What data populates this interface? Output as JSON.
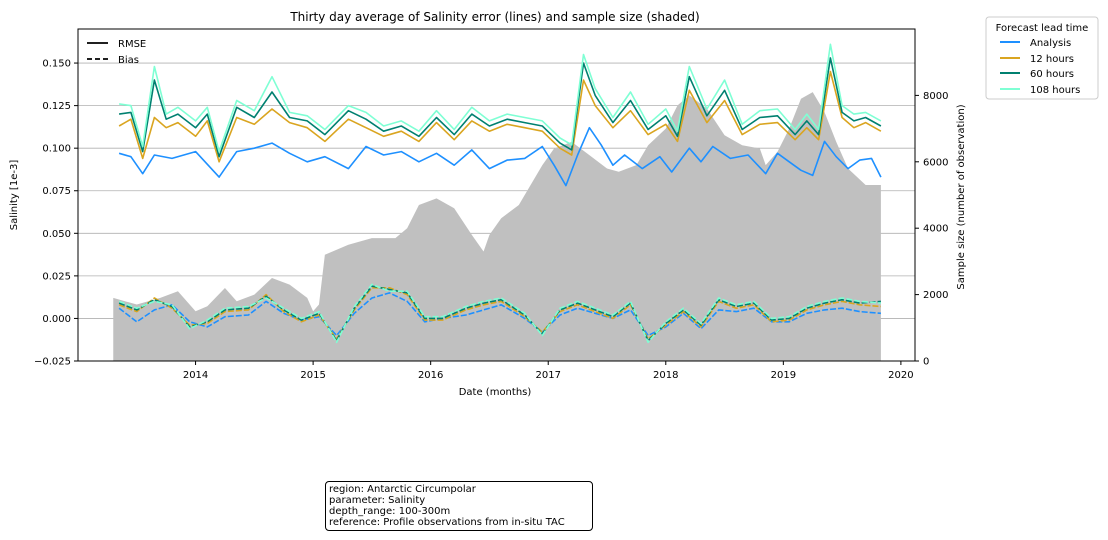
{
  "chart_data": {
    "type": "line",
    "title": "Thirty day average of Salinity error (lines) and sample size (shaded)",
    "xlabel": "Date (months)",
    "ylabel": "Salinity [1e-3]",
    "y2label": "Sample size (number of observation)",
    "xlim": [
      2013.0,
      2020.12
    ],
    "ylim": [
      -0.025,
      0.17
    ],
    "y2lim": [
      0,
      10000
    ],
    "x_ticks": [
      "2014",
      "2015",
      "2016",
      "2017",
      "2018",
      "2019",
      "2020"
    ],
    "y_ticks": [
      "−0.025",
      "0.000",
      "0.025",
      "0.050",
      "0.075",
      "0.100",
      "0.125",
      "0.150"
    ],
    "y2_ticks": [
      "0",
      "2000",
      "4000",
      "6000",
      "8000"
    ],
    "grid": "horizontal",
    "style_legend": {
      "placement": "top-left",
      "entries": [
        {
          "label": "RMSE",
          "style": "solid"
        },
        {
          "label": "Bias",
          "style": "dashed"
        }
      ]
    },
    "series_legend": {
      "title": "Forecast lead time",
      "placement": "outside-top-right",
      "entries": [
        "Analysis",
        "12 hours",
        "60 hours",
        "108 hours"
      ]
    },
    "sample_size": {
      "color": "#c0c0c0",
      "x": [
        2013.3,
        2013.5,
        2013.7,
        2013.85,
        2014.0,
        2014.1,
        2014.25,
        2014.35,
        2014.5,
        2014.65,
        2014.8,
        2014.95,
        2015.0,
        2015.05,
        2015.1,
        2015.3,
        2015.5,
        2015.7,
        2015.8,
        2015.9,
        2016.05,
        2016.2,
        2016.35,
        2016.45,
        2016.5,
        2016.6,
        2016.75,
        2016.8,
        2016.95,
        2017.05,
        2017.2,
        2017.35,
        2017.5,
        2017.6,
        2017.75,
        2017.85,
        2018.0,
        2018.1,
        2018.2,
        2018.35,
        2018.5,
        2018.65,
        2018.8,
        2018.85,
        2018.95,
        2019.05,
        2019.15,
        2019.25,
        2019.35,
        2019.45,
        2019.55,
        2019.7,
        2019.83
      ],
      "values": [
        1900,
        1700,
        1900,
        2100,
        1500,
        1650,
        2200,
        1800,
        2000,
        2500,
        2300,
        1900,
        1500,
        1700,
        3200,
        3500,
        3700,
        3700,
        4000,
        4700,
        4900,
        4600,
        3800,
        3300,
        3800,
        4300,
        4700,
        5000,
        5900,
        6400,
        6600,
        6200,
        5800,
        5700,
        5900,
        6500,
        7000,
        7700,
        8000,
        7600,
        6800,
        6500,
        6400,
        5900,
        6300,
        7000,
        7900,
        8100,
        7500,
        6600,
        5800,
        5300,
        5300
      ]
    },
    "series": [
      {
        "name": "Analysis",
        "color": "#1e90ff",
        "kind": "RMSE",
        "x": [
          2013.35,
          2013.45,
          2013.55,
          2013.65,
          2013.8,
          2014.0,
          2014.2,
          2014.35,
          2014.5,
          2014.65,
          2014.8,
          2014.95,
          2015.1,
          2015.3,
          2015.45,
          2015.6,
          2015.75,
          2015.9,
          2016.05,
          2016.2,
          2016.35,
          2016.5,
          2016.65,
          2016.8,
          2016.95,
          2017.05,
          2017.15,
          2017.25,
          2017.35,
          2017.45,
          2017.55,
          2017.65,
          2017.8,
          2017.95,
          2018.05,
          2018.2,
          2018.3,
          2018.4,
          2018.55,
          2018.7,
          2018.85,
          2018.95,
          2019.05,
          2019.15,
          2019.25,
          2019.35,
          2019.45,
          2019.55,
          2019.65,
          2019.75,
          2019.83
        ],
        "values": [
          0.097,
          0.095,
          0.085,
          0.096,
          0.094,
          0.098,
          0.083,
          0.098,
          0.1,
          0.103,
          0.097,
          0.092,
          0.095,
          0.088,
          0.101,
          0.096,
          0.098,
          0.092,
          0.097,
          0.09,
          0.099,
          0.088,
          0.093,
          0.094,
          0.101,
          0.09,
          0.078,
          0.096,
          0.112,
          0.102,
          0.09,
          0.096,
          0.088,
          0.095,
          0.086,
          0.1,
          0.092,
          0.101,
          0.094,
          0.096,
          0.085,
          0.097,
          0.092,
          0.087,
          0.084,
          0.104,
          0.095,
          0.088,
          0.093,
          0.094,
          0.083
        ]
      },
      {
        "name": "12 hours",
        "color": "#daa520",
        "kind": "RMSE",
        "x": [
          2013.35,
          2013.45,
          2013.55,
          2013.65,
          2013.75,
          2013.85,
          2014.0,
          2014.1,
          2014.2,
          2014.35,
          2014.5,
          2014.65,
          2014.8,
          2014.95,
          2015.1,
          2015.3,
          2015.45,
          2015.6,
          2015.75,
          2015.9,
          2016.05,
          2016.2,
          2016.35,
          2016.5,
          2016.65,
          2016.8,
          2016.95,
          2017.1,
          2017.2,
          2017.3,
          2017.4,
          2017.55,
          2017.7,
          2017.85,
          2018.0,
          2018.1,
          2018.2,
          2018.35,
          2018.5,
          2018.65,
          2018.8,
          2018.95,
          2019.1,
          2019.2,
          2019.3,
          2019.4,
          2019.5,
          2019.6,
          2019.7,
          2019.83
        ],
        "values": [
          0.113,
          0.117,
          0.094,
          0.118,
          0.112,
          0.115,
          0.107,
          0.116,
          0.092,
          0.118,
          0.114,
          0.123,
          0.115,
          0.112,
          0.104,
          0.117,
          0.112,
          0.107,
          0.11,
          0.104,
          0.115,
          0.105,
          0.116,
          0.11,
          0.114,
          0.112,
          0.11,
          0.1,
          0.096,
          0.14,
          0.125,
          0.112,
          0.122,
          0.108,
          0.114,
          0.104,
          0.134,
          0.115,
          0.128,
          0.108,
          0.114,
          0.115,
          0.105,
          0.112,
          0.105,
          0.145,
          0.118,
          0.112,
          0.115,
          0.11
        ]
      },
      {
        "name": "60 hours",
        "color": "#008070",
        "kind": "RMSE",
        "x": [
          2013.35,
          2013.45,
          2013.55,
          2013.65,
          2013.75,
          2013.85,
          2014.0,
          2014.1,
          2014.2,
          2014.35,
          2014.5,
          2014.65,
          2014.8,
          2014.95,
          2015.1,
          2015.3,
          2015.45,
          2015.6,
          2015.75,
          2015.9,
          2016.05,
          2016.2,
          2016.35,
          2016.5,
          2016.65,
          2016.8,
          2016.95,
          2017.1,
          2017.2,
          2017.3,
          2017.4,
          2017.55,
          2017.7,
          2017.85,
          2018.0,
          2018.1,
          2018.2,
          2018.35,
          2018.5,
          2018.65,
          2018.8,
          2018.95,
          2019.1,
          2019.2,
          2019.3,
          2019.4,
          2019.5,
          2019.6,
          2019.7,
          2019.83
        ],
        "values": [
          0.12,
          0.121,
          0.098,
          0.14,
          0.117,
          0.12,
          0.112,
          0.12,
          0.095,
          0.124,
          0.118,
          0.133,
          0.118,
          0.116,
          0.108,
          0.122,
          0.117,
          0.11,
          0.113,
          0.107,
          0.118,
          0.108,
          0.12,
          0.113,
          0.117,
          0.115,
          0.113,
          0.103,
          0.099,
          0.15,
          0.131,
          0.115,
          0.128,
          0.111,
          0.119,
          0.107,
          0.142,
          0.119,
          0.134,
          0.111,
          0.118,
          0.119,
          0.108,
          0.116,
          0.108,
          0.153,
          0.121,
          0.116,
          0.118,
          0.113
        ]
      },
      {
        "name": "108 hours",
        "color": "#7fffd4",
        "kind": "RMSE",
        "x": [
          2013.35,
          2013.45,
          2013.55,
          2013.65,
          2013.75,
          2013.85,
          2014.0,
          2014.1,
          2014.2,
          2014.35,
          2014.5,
          2014.65,
          2014.8,
          2014.95,
          2015.1,
          2015.3,
          2015.45,
          2015.6,
          2015.75,
          2015.9,
          2016.05,
          2016.2,
          2016.35,
          2016.5,
          2016.65,
          2016.8,
          2016.95,
          2017.1,
          2017.2,
          2017.3,
          2017.4,
          2017.55,
          2017.7,
          2017.85,
          2018.0,
          2018.1,
          2018.2,
          2018.35,
          2018.5,
          2018.65,
          2018.8,
          2018.95,
          2019.1,
          2019.2,
          2019.3,
          2019.4,
          2019.5,
          2019.6,
          2019.7,
          2019.83
        ],
        "values": [
          0.126,
          0.125,
          0.101,
          0.148,
          0.12,
          0.124,
          0.116,
          0.124,
          0.098,
          0.128,
          0.122,
          0.142,
          0.121,
          0.119,
          0.111,
          0.125,
          0.121,
          0.113,
          0.116,
          0.11,
          0.122,
          0.111,
          0.124,
          0.116,
          0.12,
          0.118,
          0.116,
          0.106,
          0.102,
          0.155,
          0.135,
          0.118,
          0.133,
          0.114,
          0.123,
          0.11,
          0.148,
          0.123,
          0.14,
          0.114,
          0.122,
          0.123,
          0.111,
          0.12,
          0.111,
          0.161,
          0.125,
          0.12,
          0.121,
          0.116
        ]
      },
      {
        "name": "Analysis",
        "color": "#1e90ff",
        "kind": "Bias",
        "x": [
          2013.35,
          2013.5,
          2013.65,
          2013.8,
          2013.95,
          2014.1,
          2014.25,
          2014.45,
          2014.6,
          2014.75,
          2014.9,
          2015.05,
          2015.2,
          2015.35,
          2015.5,
          2015.65,
          2015.8,
          2015.95,
          2016.1,
          2016.3,
          2016.45,
          2016.6,
          2016.8,
          2016.95,
          2017.1,
          2017.25,
          2017.4,
          2017.55,
          2017.7,
          2017.85,
          2018.0,
          2018.15,
          2018.3,
          2018.45,
          2018.6,
          2018.75,
          2018.9,
          2019.05,
          2019.2,
          2019.35,
          2019.5,
          2019.65,
          2019.83
        ],
        "values": [
          0.006,
          -0.002,
          0.005,
          0.008,
          -0.002,
          -0.005,
          0.001,
          0.002,
          0.01,
          0.003,
          -0.001,
          0.001,
          -0.01,
          0.003,
          0.012,
          0.015,
          0.01,
          -0.002,
          0.0,
          0.002,
          0.005,
          0.008,
          0.0,
          -0.008,
          0.002,
          0.006,
          0.003,
          0.0,
          0.005,
          -0.01,
          -0.005,
          0.003,
          -0.006,
          0.005,
          0.004,
          0.006,
          -0.002,
          -0.002,
          0.003,
          0.005,
          0.006,
          0.004,
          0.003
        ]
      },
      {
        "name": "12 hours",
        "color": "#daa520",
        "kind": "Bias",
        "x": [
          2013.35,
          2013.5,
          2013.65,
          2013.8,
          2013.95,
          2014.1,
          2014.25,
          2014.45,
          2014.6,
          2014.75,
          2014.9,
          2015.05,
          2015.2,
          2015.35,
          2015.5,
          2015.65,
          2015.8,
          2015.95,
          2016.1,
          2016.3,
          2016.45,
          2016.6,
          2016.8,
          2016.95,
          2017.1,
          2017.25,
          2017.4,
          2017.55,
          2017.7,
          2017.85,
          2018.0,
          2018.15,
          2018.3,
          2018.45,
          2018.6,
          2018.75,
          2018.9,
          2019.05,
          2019.2,
          2019.35,
          2019.5,
          2019.65,
          2019.83
        ],
        "values": [
          0.008,
          0.004,
          0.012,
          0.006,
          -0.004,
          -0.003,
          0.004,
          0.005,
          0.014,
          0.004,
          -0.002,
          0.002,
          -0.012,
          0.005,
          0.018,
          0.018,
          0.014,
          -0.001,
          -0.001,
          0.005,
          0.008,
          0.01,
          0.001,
          -0.008,
          0.004,
          0.008,
          0.004,
          0.0,
          0.008,
          -0.012,
          -0.004,
          0.004,
          -0.005,
          0.01,
          0.006,
          0.008,
          -0.002,
          -0.001,
          0.005,
          0.008,
          0.01,
          0.008,
          0.007
        ]
      },
      {
        "name": "60 hours",
        "color": "#008070",
        "kind": "Bias",
        "x": [
          2013.35,
          2013.5,
          2013.65,
          2013.8,
          2013.95,
          2014.1,
          2014.25,
          2014.45,
          2014.6,
          2014.75,
          2014.9,
          2015.05,
          2015.2,
          2015.35,
          2015.5,
          2015.65,
          2015.8,
          2015.95,
          2016.1,
          2016.3,
          2016.45,
          2016.6,
          2016.8,
          2016.95,
          2017.1,
          2017.25,
          2017.4,
          2017.55,
          2017.7,
          2017.85,
          2018.0,
          2018.15,
          2018.3,
          2018.45,
          2018.6,
          2018.75,
          2018.9,
          2019.05,
          2019.2,
          2019.35,
          2019.5,
          2019.65,
          2019.83
        ],
        "values": [
          0.009,
          0.005,
          0.011,
          0.007,
          -0.005,
          -0.002,
          0.005,
          0.006,
          0.013,
          0.005,
          -0.001,
          0.003,
          -0.013,
          0.006,
          0.019,
          0.017,
          0.015,
          0.0,
          0.0,
          0.006,
          0.009,
          0.011,
          0.002,
          -0.009,
          0.005,
          0.009,
          0.005,
          0.001,
          0.009,
          -0.013,
          -0.003,
          0.005,
          -0.004,
          0.011,
          0.007,
          0.009,
          -0.001,
          0.0,
          0.006,
          0.009,
          0.011,
          0.009,
          0.01
        ]
      },
      {
        "name": "108 hours",
        "color": "#7fffd4",
        "kind": "Bias",
        "x": [
          2013.35,
          2013.5,
          2013.65,
          2013.8,
          2013.95,
          2014.1,
          2014.25,
          2014.45,
          2014.6,
          2014.75,
          2014.9,
          2015.05,
          2015.2,
          2015.35,
          2015.5,
          2015.65,
          2015.8,
          2015.95,
          2016.1,
          2016.3,
          2016.45,
          2016.6,
          2016.8,
          2016.95,
          2017.1,
          2017.25,
          2017.4,
          2017.55,
          2017.7,
          2017.85,
          2018.0,
          2018.15,
          2018.3,
          2018.45,
          2018.6,
          2018.75,
          2018.9,
          2019.05,
          2019.2,
          2019.35,
          2019.5,
          2019.65,
          2019.83
        ],
        "values": [
          0.01,
          0.006,
          0.01,
          0.008,
          -0.006,
          -0.001,
          0.006,
          0.007,
          0.012,
          0.006,
          0.0,
          0.004,
          -0.014,
          0.007,
          0.02,
          0.016,
          0.016,
          0.001,
          0.001,
          0.007,
          0.01,
          0.012,
          0.003,
          -0.01,
          0.006,
          0.01,
          0.006,
          0.002,
          0.01,
          -0.014,
          -0.002,
          0.006,
          -0.003,
          0.012,
          0.008,
          0.01,
          0.0,
          0.001,
          0.007,
          0.01,
          0.012,
          0.01,
          0.009
        ]
      }
    ]
  },
  "info_box": {
    "lines": [
      "region: Antarctic Circumpolar",
      "parameter: Salinity",
      "depth_range: 100-300m",
      "reference: Profile observations from in-situ TAC"
    ]
  }
}
